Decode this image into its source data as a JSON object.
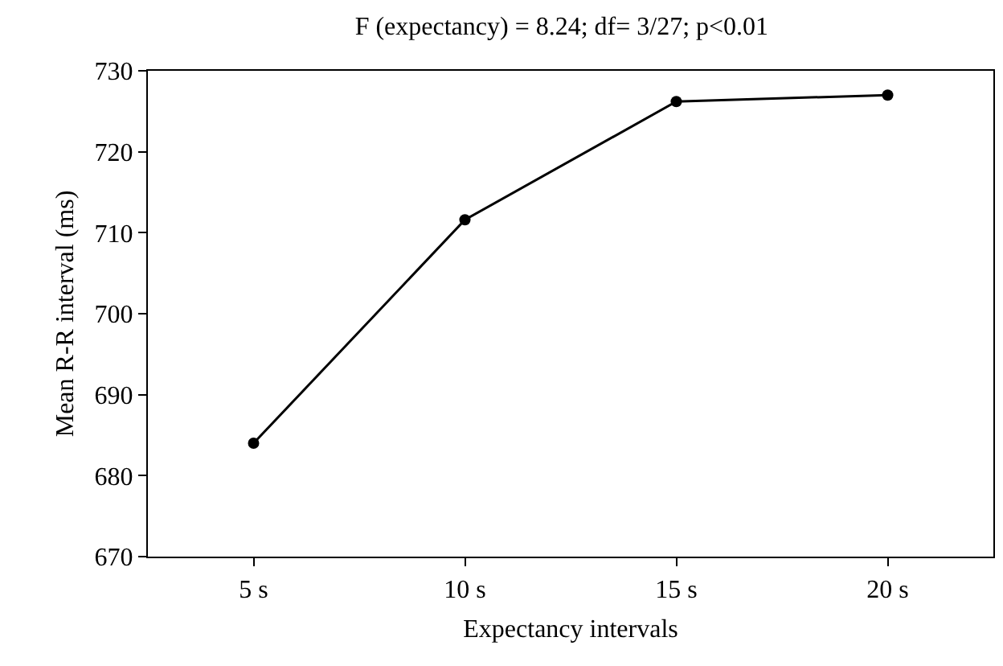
{
  "chart_data": {
    "type": "line",
    "title": "F (expectancy) = 8.24; df= 3/27; p<0.01",
    "xlabel": "Expectancy intervals",
    "ylabel": "Mean R-R interval (ms)",
    "categories": [
      "5 s",
      "10 s",
      "15 s",
      "20 s"
    ],
    "series": [
      {
        "color": "#000000",
        "values": [
          684,
          711.6,
          726.2,
          727
        ]
      }
    ],
    "ylim": [
      670,
      730
    ],
    "yticks": [
      670,
      680,
      690,
      700,
      710,
      720,
      730
    ],
    "grid": false,
    "marker": "circle",
    "line_style": "solid"
  }
}
